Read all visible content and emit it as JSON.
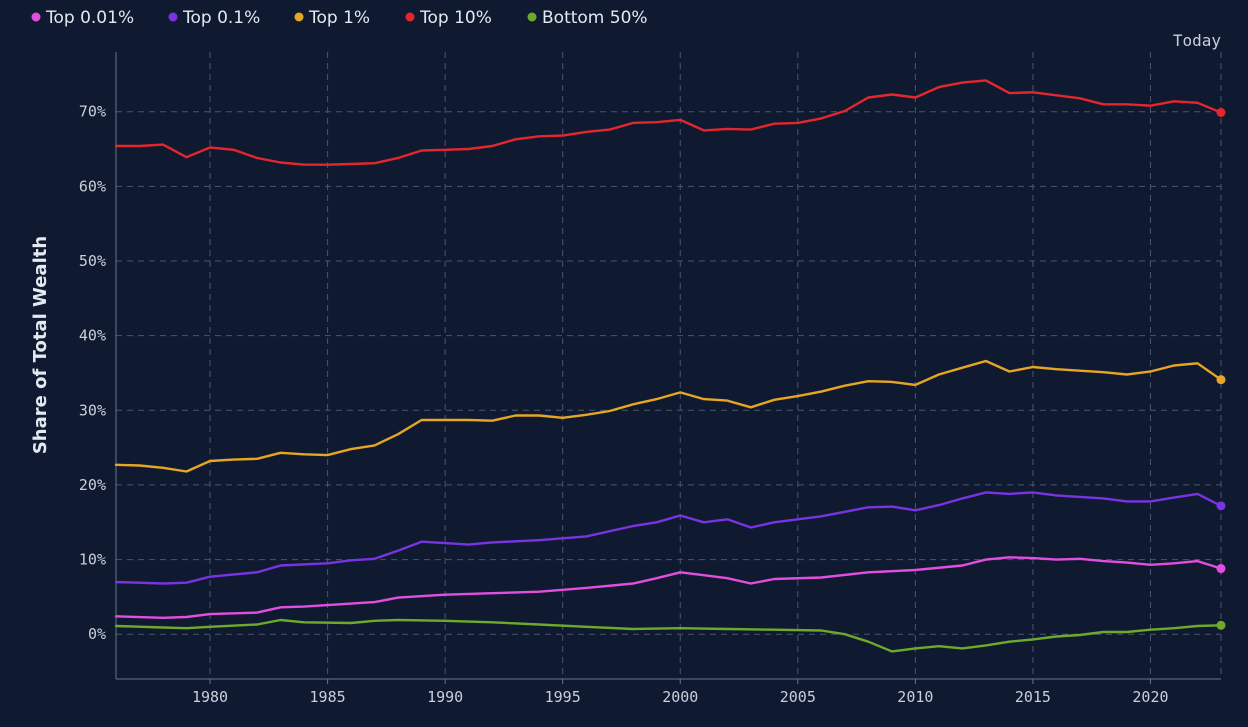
{
  "chart_data": {
    "type": "line",
    "ylabel": "Share of Total Wealth",
    "xlim": [
      1976,
      2023
    ],
    "ylim": [
      -6,
      78
    ],
    "today_label": "Today",
    "x_ticks": [
      1980,
      1985,
      1990,
      1995,
      2000,
      2005,
      2010,
      2015,
      2020
    ],
    "y_ticks": [
      {
        "value": 0,
        "label": "0%"
      },
      {
        "value": 10,
        "label": "10%"
      },
      {
        "value": 20,
        "label": "20%"
      },
      {
        "value": 30,
        "label": "30%"
      },
      {
        "value": 40,
        "label": "40%"
      },
      {
        "value": 50,
        "label": "50%"
      },
      {
        "value": 60,
        "label": "60%"
      },
      {
        "value": 70,
        "label": "70%"
      }
    ],
    "grid": true,
    "legend_position": "top-left",
    "series": [
      {
        "name": "Top 0.01%",
        "color": "#e24fe0",
        "x": [
          1976,
          1978,
          1979,
          1980,
          1982,
          1983,
          1984,
          1986,
          1987,
          1988,
          1990,
          1992,
          1994,
          1996,
          1998,
          1999,
          2000,
          2001,
          2002,
          2003,
          2004,
          2006,
          2008,
          2010,
          2012,
          2013,
          2014,
          2015,
          2016,
          2017,
          2018,
          2019,
          2020,
          2021,
          2022,
          2023
        ],
        "values": [
          2.4,
          2.2,
          2.3,
          2.7,
          2.9,
          3.6,
          3.7,
          4.1,
          4.3,
          4.9,
          5.3,
          5.5,
          5.7,
          6.2,
          6.8,
          7.5,
          8.3,
          7.9,
          7.5,
          6.8,
          7.4,
          7.6,
          8.3,
          8.6,
          9.2,
          10.0,
          10.3,
          10.2,
          10.0,
          10.1,
          9.8,
          9.6,
          9.3,
          9.5,
          9.8,
          8.8
        ]
      },
      {
        "name": "Top 0.1%",
        "color": "#7a33e0",
        "x": [
          1976,
          1978,
          1979,
          1980,
          1982,
          1983,
          1985,
          1986,
          1987,
          1988,
          1989,
          1990,
          1991,
          1992,
          1994,
          1996,
          1998,
          1999,
          2000,
          2001,
          2002,
          2003,
          2004,
          2006,
          2008,
          2009,
          2010,
          2011,
          2012,
          2013,
          2014,
          2015,
          2016,
          2018,
          2019,
          2020,
          2021,
          2022,
          2023
        ],
        "values": [
          7.0,
          6.8,
          6.9,
          7.7,
          8.3,
          9.2,
          9.5,
          9.9,
          10.1,
          11.2,
          12.4,
          12.2,
          12.0,
          12.3,
          12.6,
          13.1,
          14.5,
          15.0,
          15.9,
          15.0,
          15.4,
          14.3,
          15.0,
          15.8,
          17.0,
          17.1,
          16.6,
          17.3,
          18.2,
          19.0,
          18.8,
          19.0,
          18.6,
          18.2,
          17.8,
          17.8,
          18.3,
          18.8,
          17.2
        ]
      },
      {
        "name": "Top 1%",
        "color": "#e6a623",
        "x": [
          1976,
          1977,
          1978,
          1979,
          1980,
          1981,
          1982,
          1983,
          1984,
          1985,
          1986,
          1987,
          1988,
          1989,
          1990,
          1991,
          1992,
          1993,
          1994,
          1995,
          1996,
          1997,
          1998,
          1999,
          2000,
          2001,
          2002,
          2003,
          2004,
          2005,
          2006,
          2007,
          2008,
          2009,
          2010,
          2011,
          2012,
          2013,
          2014,
          2015,
          2016,
          2017,
          2018,
          2019,
          2020,
          2021,
          2022,
          2023
        ],
        "values": [
          22.7,
          22.6,
          22.3,
          21.8,
          23.2,
          23.4,
          23.5,
          24.3,
          24.1,
          24.0,
          24.8,
          25.3,
          26.8,
          28.7,
          28.7,
          28.7,
          28.6,
          29.3,
          29.3,
          29.0,
          29.4,
          29.9,
          30.8,
          31.5,
          32.4,
          31.5,
          31.3,
          30.4,
          31.4,
          31.9,
          32.5,
          33.3,
          33.9,
          33.8,
          33.4,
          34.8,
          35.7,
          36.6,
          35.2,
          35.8,
          35.5,
          35.3,
          35.1,
          34.8,
          35.2,
          36.0,
          36.3,
          34.1
        ]
      },
      {
        "name": "Top 10%",
        "color": "#e4262e",
        "x": [
          1976,
          1977,
          1978,
          1979,
          1980,
          1981,
          1982,
          1983,
          1984,
          1985,
          1986,
          1987,
          1988,
          1989,
          1990,
          1991,
          1992,
          1993,
          1994,
          1995,
          1996,
          1997,
          1998,
          1999,
          2000,
          2001,
          2002,
          2003,
          2004,
          2005,
          2006,
          2007,
          2008,
          2009,
          2010,
          2011,
          2012,
          2013,
          2014,
          2015,
          2016,
          2017,
          2018,
          2019,
          2020,
          2021,
          2022,
          2023
        ],
        "values": [
          65.4,
          65.4,
          65.6,
          63.9,
          65.2,
          64.9,
          63.8,
          63.2,
          62.9,
          62.9,
          63.0,
          63.1,
          63.8,
          64.8,
          64.9,
          65.0,
          65.4,
          66.3,
          66.7,
          66.8,
          67.3,
          67.6,
          68.5,
          68.6,
          68.9,
          67.5,
          67.7,
          67.6,
          68.4,
          68.5,
          69.1,
          70.1,
          71.9,
          72.3,
          71.9,
          73.3,
          73.9,
          74.2,
          72.5,
          72.6,
          72.2,
          71.8,
          71.0,
          71.0,
          70.8,
          71.4,
          71.2,
          69.9
        ]
      },
      {
        "name": "Bottom 50%",
        "color": "#6eaa2a",
        "x": [
          1976,
          1978,
          1979,
          1980,
          1982,
          1983,
          1984,
          1986,
          1987,
          1988,
          1990,
          1992,
          1994,
          1996,
          1998,
          2000,
          2002,
          2004,
          2006,
          2007,
          2008,
          2009,
          2010,
          2011,
          2012,
          2013,
          2014,
          2015,
          2016,
          2017,
          2018,
          2019,
          2020,
          2021,
          2022,
          2023
        ],
        "values": [
          1.1,
          0.9,
          0.8,
          1.0,
          1.3,
          1.9,
          1.6,
          1.5,
          1.8,
          1.9,
          1.8,
          1.6,
          1.3,
          1.0,
          0.7,
          0.8,
          0.7,
          0.6,
          0.5,
          0.0,
          -1.0,
          -2.3,
          -1.9,
          -1.6,
          -1.9,
          -1.5,
          -1.0,
          -0.7,
          -0.3,
          -0.1,
          0.3,
          0.3,
          0.6,
          0.8,
          1.1,
          1.2
        ]
      }
    ]
  }
}
